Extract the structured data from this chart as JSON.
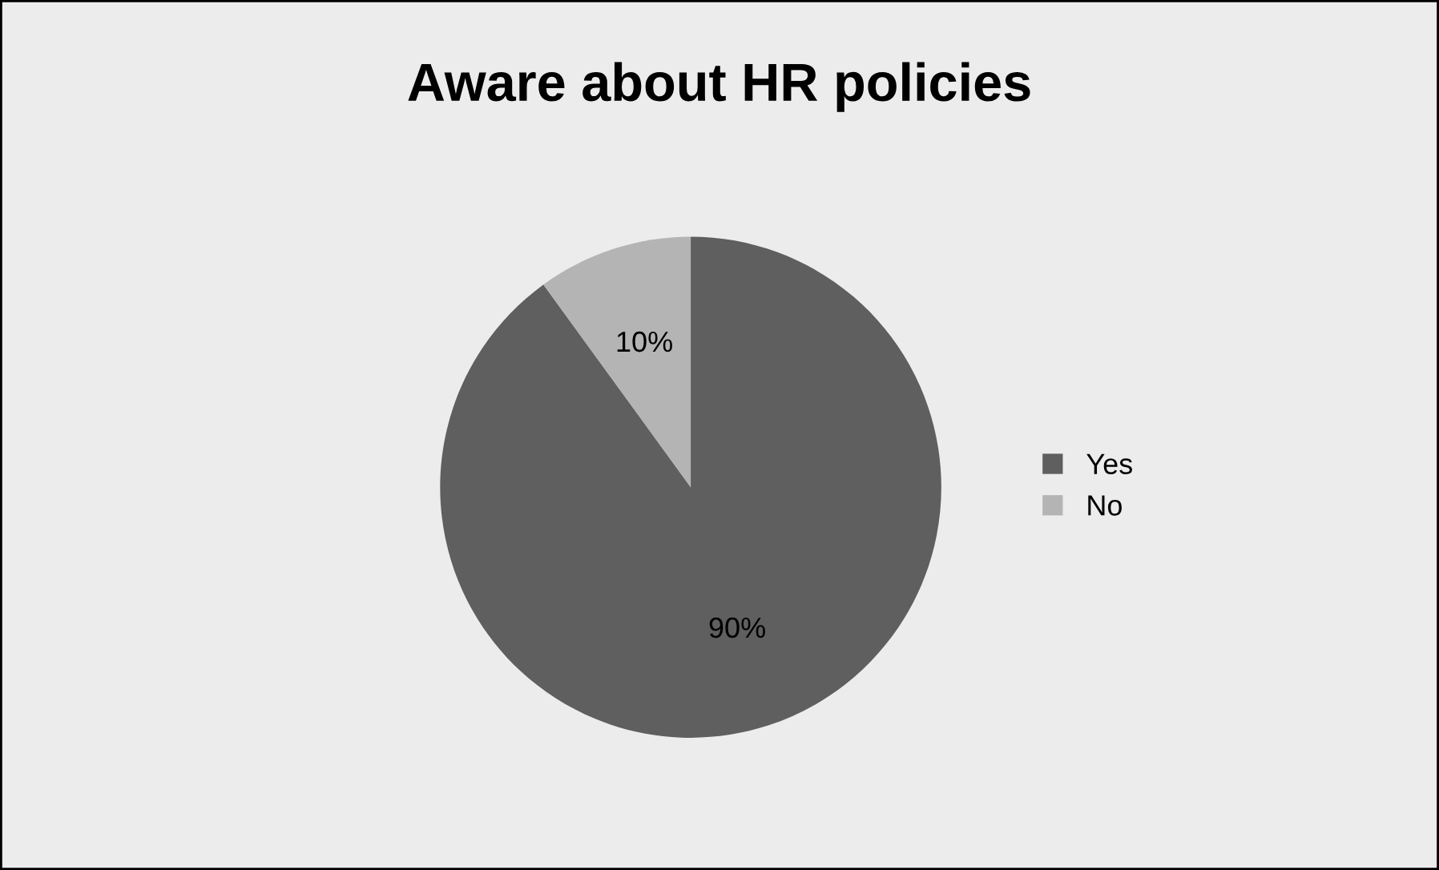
{
  "chart_data": {
    "type": "pie",
    "title": "Aware about HR policies",
    "categories": [
      "Yes",
      "No"
    ],
    "values": [
      90,
      10
    ],
    "colors": [
      "#5f5f5f",
      "#b4b4b4"
    ],
    "value_labels": [
      "90%",
      "10%"
    ],
    "legend": "right"
  }
}
